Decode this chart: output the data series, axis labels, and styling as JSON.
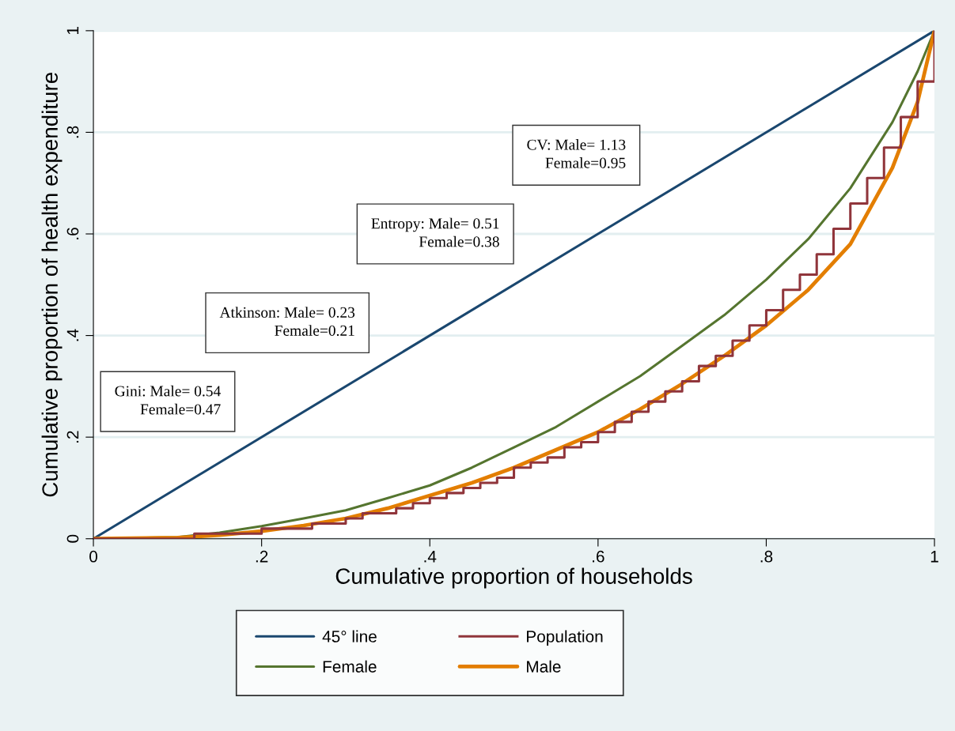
{
  "chart_data": {
    "type": "line",
    "xlabel": "Cumulative proportion of households",
    "ylabel": "Cumulative proportion of health expenditure",
    "xlim": [
      0,
      1
    ],
    "ylim": [
      0,
      1
    ],
    "xticks": [
      0,
      {
        "value": 0.2,
        "label": ".2"
      },
      {
        "value": 0.4,
        "label": ".4"
      },
      {
        "value": 0.6,
        "label": ".6"
      },
      {
        "value": 0.8,
        "label": ".8"
      },
      1
    ],
    "yticks": [
      0,
      {
        "value": 0.2,
        "label": ".2"
      },
      {
        "value": 0.4,
        "label": ".4"
      },
      {
        "value": 0.6,
        "label": ".6"
      },
      {
        "value": 0.8,
        "label": ".8"
      },
      1
    ],
    "grid": "y",
    "legend": "bottom",
    "annotations": [
      "Gini: Male= 0.54\nFemale=0.47",
      "Atkinson: Male= 0.23\nFemale=0.21",
      "Entropy: Male= 0.51\nFemale=0.38",
      "CV: Male= 1.13\nFemale=0.95"
    ],
    "series": [
      {
        "name": "45° line",
        "color": "#1a476f",
        "x": [
          0,
          1
        ],
        "values": [
          0,
          1
        ]
      },
      {
        "name": "Population",
        "type": "step",
        "color": "#90353b",
        "x": [
          0,
          0.02,
          0.04,
          0.06,
          0.08,
          0.1,
          0.12,
          0.14,
          0.16,
          0.18,
          0.2,
          0.22,
          0.24,
          0.26,
          0.28,
          0.3,
          0.32,
          0.34,
          0.36,
          0.38,
          0.4,
          0.42,
          0.44,
          0.46,
          0.48,
          0.5,
          0.52,
          0.54,
          0.56,
          0.58,
          0.6,
          0.62,
          0.64,
          0.66,
          0.68,
          0.7,
          0.72,
          0.74,
          0.76,
          0.78,
          0.8,
          0.82,
          0.84,
          0.86,
          0.88,
          0.9,
          0.92,
          0.94,
          0.96,
          0.98,
          1.0
        ],
        "values": [
          0,
          0,
          0,
          0,
          0,
          0,
          0.01,
          0.01,
          0.01,
          0.01,
          0.02,
          0.02,
          0.02,
          0.03,
          0.03,
          0.04,
          0.05,
          0.05,
          0.06,
          0.07,
          0.08,
          0.09,
          0.1,
          0.11,
          0.12,
          0.14,
          0.15,
          0.16,
          0.18,
          0.19,
          0.21,
          0.23,
          0.25,
          0.27,
          0.29,
          0.31,
          0.34,
          0.36,
          0.39,
          0.42,
          0.45,
          0.49,
          0.52,
          0.56,
          0.61,
          0.66,
          0.71,
          0.77,
          0.83,
          0.9,
          1.0
        ]
      },
      {
        "name": "Female",
        "color": "#55752f",
        "x": [
          0,
          0.1,
          0.15,
          0.2,
          0.25,
          0.3,
          0.35,
          0.4,
          0.45,
          0.5,
          0.55,
          0.6,
          0.65,
          0.7,
          0.75,
          0.8,
          0.85,
          0.9,
          0.95,
          0.98,
          1.0
        ],
        "values": [
          0,
          0.003,
          0.012,
          0.025,
          0.04,
          0.056,
          0.08,
          0.105,
          0.14,
          0.18,
          0.22,
          0.27,
          0.32,
          0.38,
          0.44,
          0.51,
          0.59,
          0.69,
          0.82,
          0.92,
          1.0
        ]
      },
      {
        "name": "Male",
        "color": "#e37e00",
        "x": [
          0,
          0.1,
          0.15,
          0.2,
          0.25,
          0.3,
          0.35,
          0.4,
          0.45,
          0.5,
          0.55,
          0.6,
          0.65,
          0.7,
          0.75,
          0.8,
          0.85,
          0.9,
          0.95,
          0.98,
          1.0
        ],
        "values": [
          0,
          0.002,
          0.007,
          0.015,
          0.026,
          0.04,
          0.06,
          0.085,
          0.11,
          0.14,
          0.175,
          0.21,
          0.255,
          0.305,
          0.36,
          0.42,
          0.49,
          0.58,
          0.73,
          0.86,
          1.0
        ]
      }
    ]
  }
}
